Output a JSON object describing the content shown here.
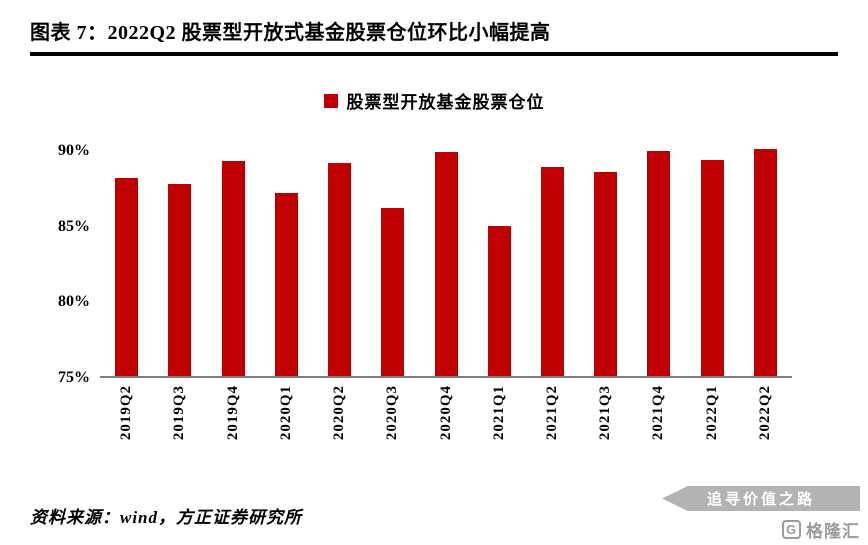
{
  "header": {
    "title": "图表 7：2022Q2 股票型开放式基金股票仓位环比小幅提高"
  },
  "legend": {
    "label": "股票型开放基金股票仓位",
    "swatch_color": "#c00000"
  },
  "chart_data": {
    "type": "bar",
    "categories": [
      "2019Q2",
      "2019Q3",
      "2019Q4",
      "2020Q1",
      "2020Q2",
      "2020Q3",
      "2020Q4",
      "2021Q1",
      "2021Q2",
      "2021Q3",
      "2021Q4",
      "2022Q1",
      "2022Q2"
    ],
    "values": [
      88.1,
      87.7,
      89.2,
      87.1,
      89.1,
      86.1,
      89.8,
      84.9,
      88.8,
      88.5,
      89.9,
      89.3,
      90.0
    ],
    "title": "",
    "xlabel": "",
    "ylabel": "",
    "ylim": [
      75,
      90
    ],
    "yticks": [
      75,
      80,
      85,
      90
    ],
    "ytick_labels": [
      "75%",
      "80%",
      "85%",
      "90%"
    ],
    "bar_color": "#c00000",
    "axis_line_color": "#7f7f7f",
    "grid": false,
    "legend_position": "top"
  },
  "footer": {
    "source": "资料来源：wind，方正证券研究所"
  },
  "watermark": {
    "banner": "追寻价值之路",
    "logo_letter": "G",
    "logo_text": "格隆汇"
  }
}
